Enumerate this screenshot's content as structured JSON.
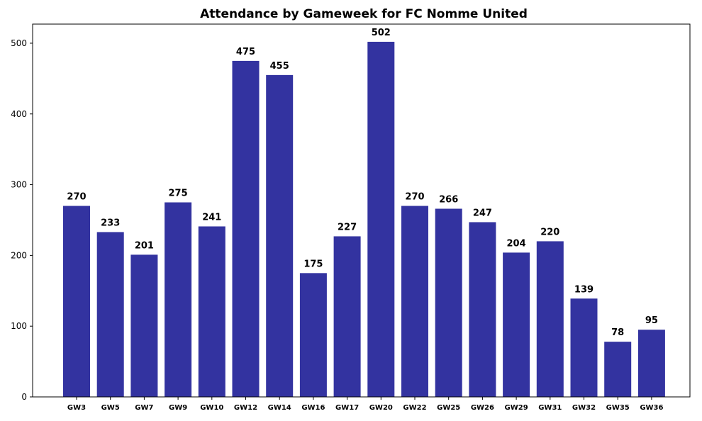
{
  "chart_data": {
    "type": "bar",
    "title": "Attendance by Gameweek for FC Nomme United",
    "xlabel": "",
    "ylabel": "",
    "categories": [
      "GW3",
      "GW5",
      "GW7",
      "GW9",
      "GW10",
      "GW12",
      "GW14",
      "GW16",
      "GW17",
      "GW20",
      "GW22",
      "GW25",
      "GW26",
      "GW29",
      "GW31",
      "GW32",
      "GW35",
      "GW36"
    ],
    "values": [
      270,
      233,
      201,
      275,
      241,
      475,
      455,
      175,
      227,
      502,
      270,
      266,
      247,
      204,
      220,
      139,
      78,
      95
    ],
    "ylim": [
      0,
      527
    ],
    "yticks": [
      0,
      100,
      200,
      300,
      400,
      500
    ],
    "grid": false,
    "bar_color": "#3333a0",
    "show_value_labels": true
  }
}
